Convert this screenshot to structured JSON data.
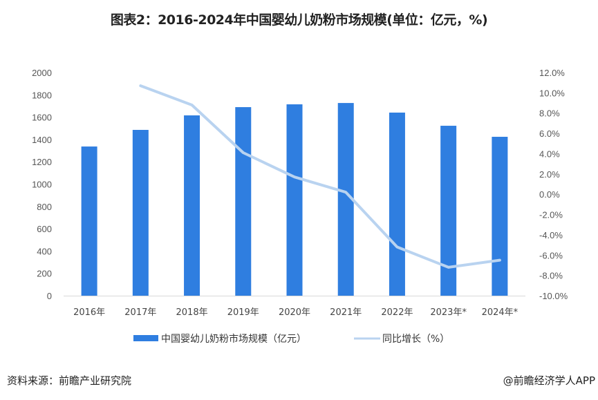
{
  "title": "图表2：2016-2024年中国婴幼儿奶粉市场规模(单位：亿元，%)",
  "chart_data": {
    "type": "bar+line",
    "title": "图表2：2016-2024年中国婴幼儿奶粉市场规模(单位：亿元，%)",
    "categories": [
      "2016年",
      "2017年",
      "2018年",
      "2019年",
      "2020年",
      "2021年",
      "2022年",
      "2023年*",
      "2024年*"
    ],
    "series": [
      {
        "name": "中国婴幼儿奶粉市场规模（亿元）",
        "type": "bar",
        "axis": "left",
        "color": "#2f7ee0",
        "values": [
          1337,
          1486,
          1616,
          1690,
          1715,
          1727,
          1641,
          1523,
          1424
        ]
      },
      {
        "name": "同比增长（%）",
        "type": "line",
        "axis": "right",
        "color": "#b9d3f0",
        "values": [
          null,
          10.7,
          8.8,
          4.1,
          1.7,
          0.2,
          -5.2,
          -7.2,
          -6.5
        ]
      }
    ],
    "left_axis": {
      "min": 0,
      "max": 2000,
      "step": 200,
      "ticks": [
        "0",
        "200",
        "400",
        "600",
        "800",
        "1000",
        "1200",
        "1400",
        "1600",
        "1800",
        "2000"
      ]
    },
    "right_axis": {
      "min": -10,
      "max": 12,
      "step": 2,
      "ticks": [
        "-10.0%",
        "-8.0%",
        "-6.0%",
        "-4.0%",
        "-2.0%",
        "0.0%",
        "2.0%",
        "4.0%",
        "6.0%",
        "8.0%",
        "10.0%",
        "12.0%"
      ]
    },
    "grid": false,
    "legend_position": "bottom"
  },
  "footer": {
    "source": "资料来源：前瞻产业研究院",
    "credit": "@前瞻经济学人APP"
  }
}
